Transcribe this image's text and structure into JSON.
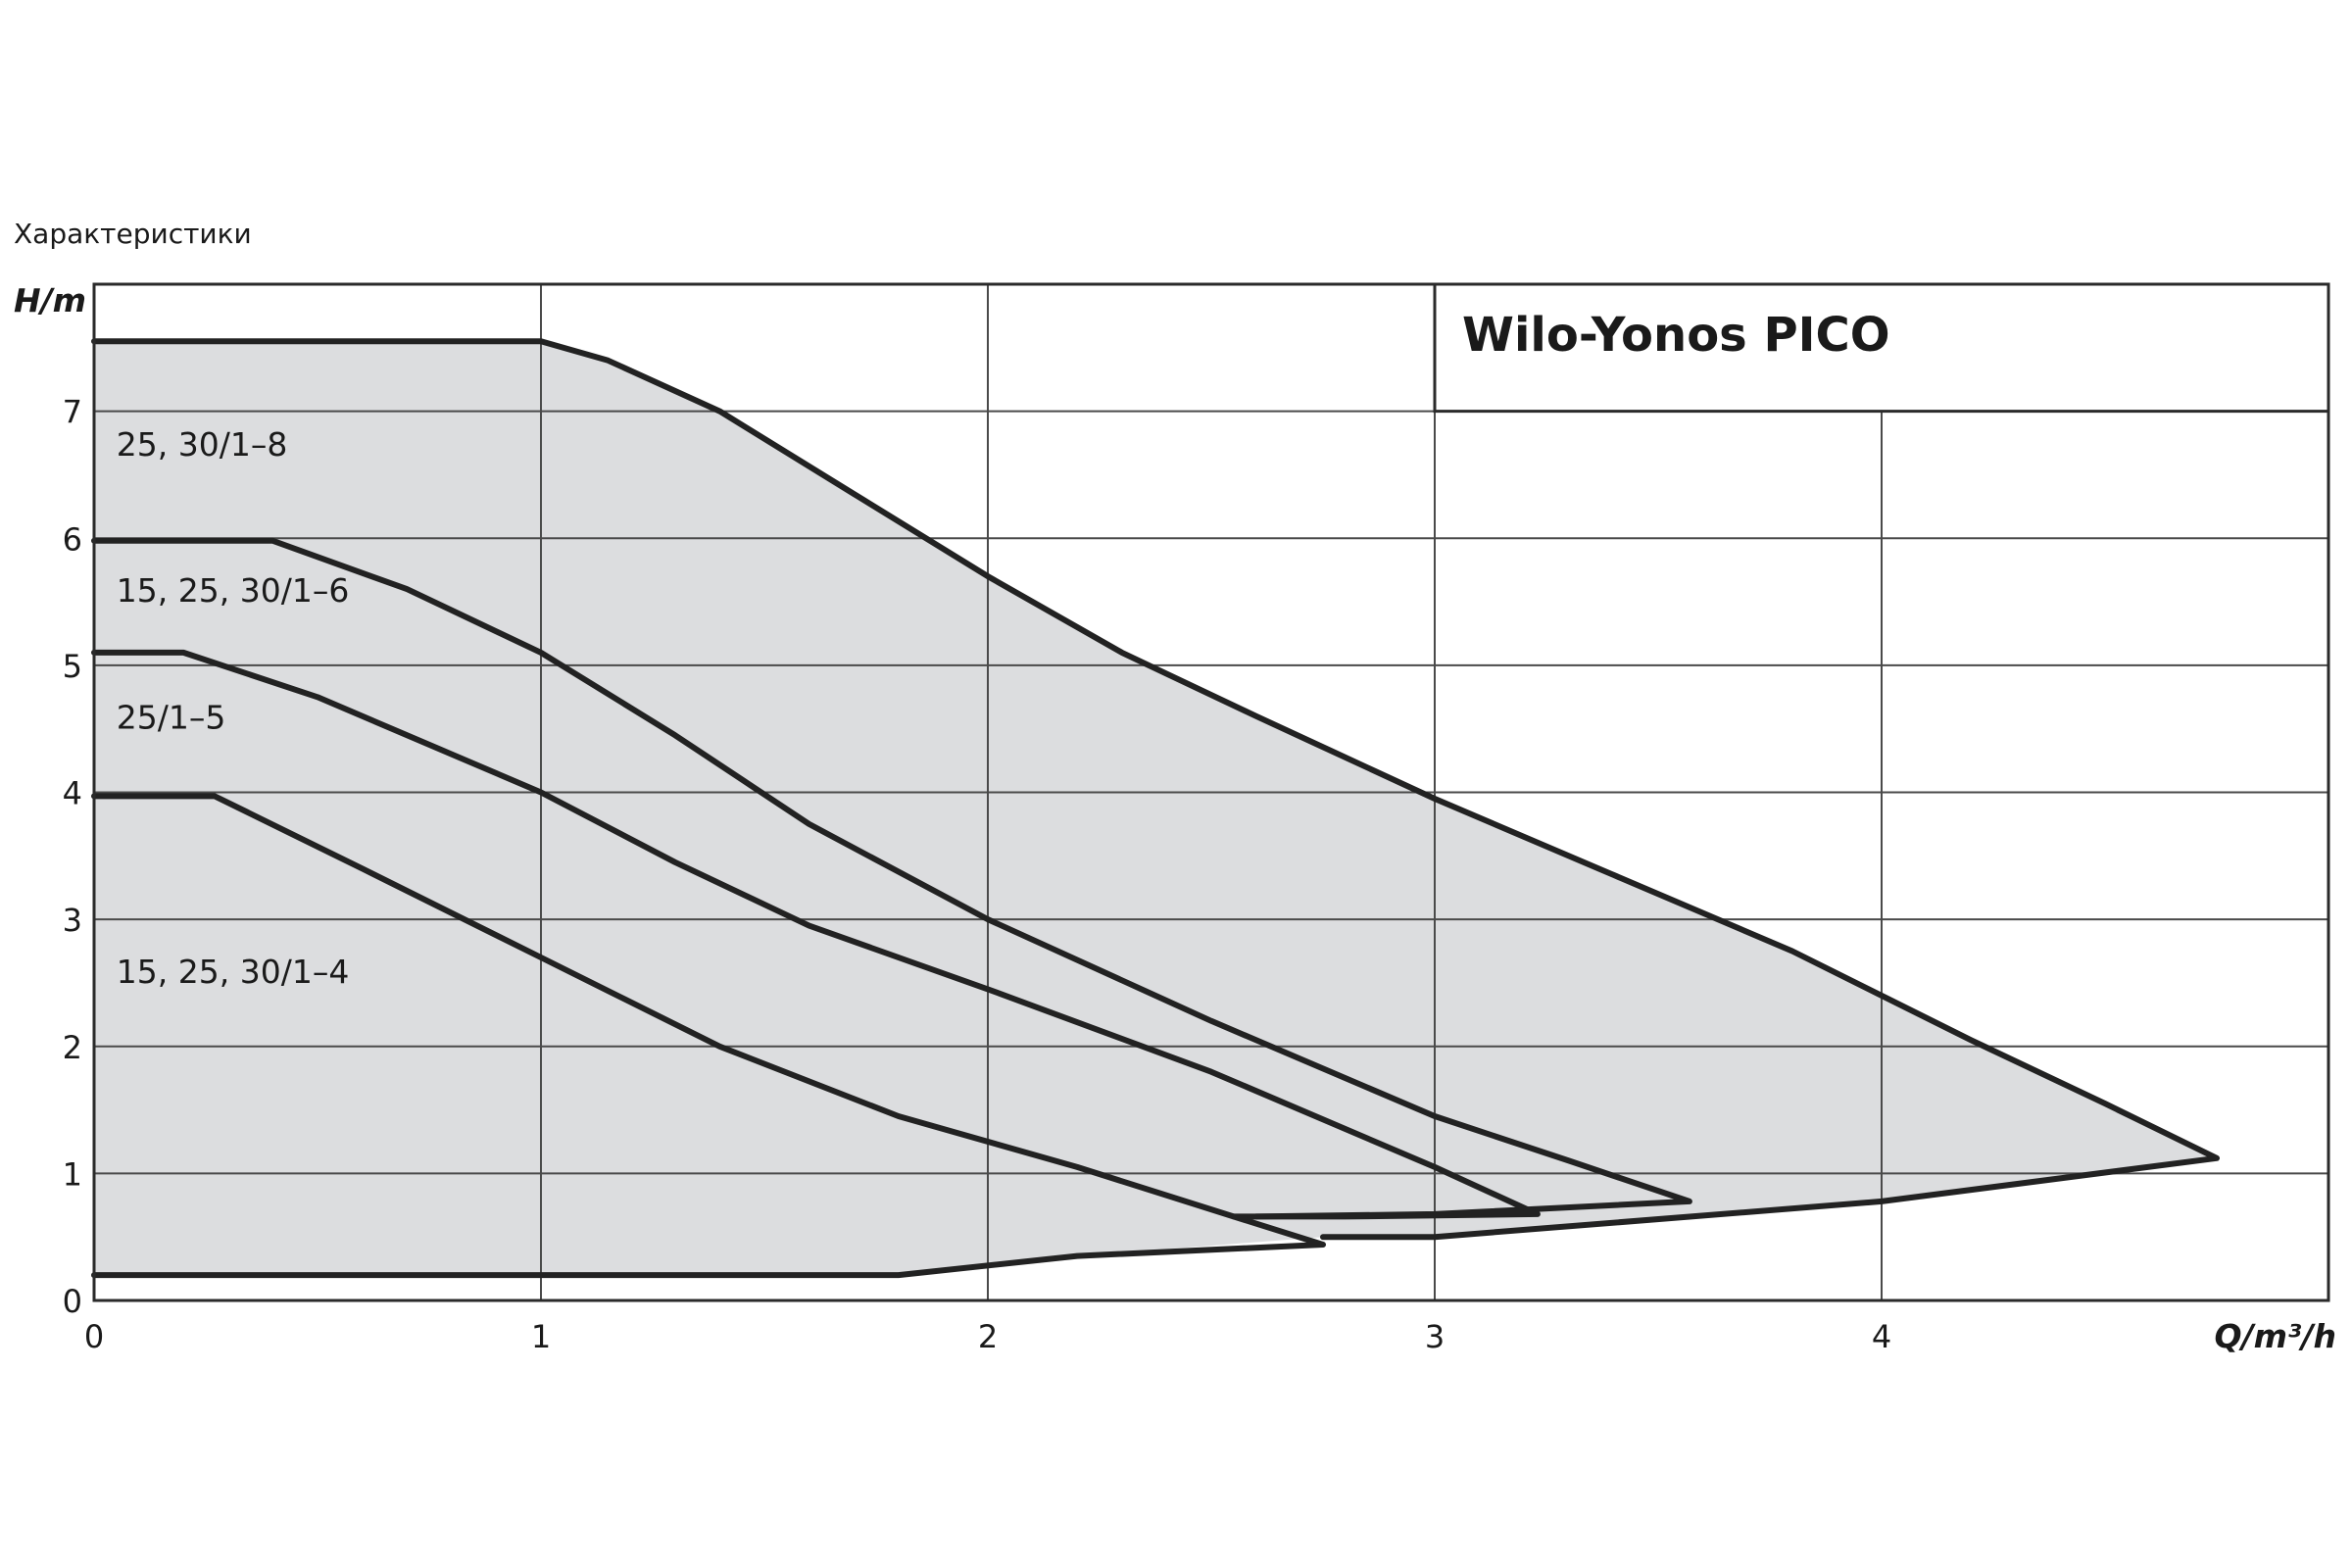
{
  "caption": "Характеристики",
  "chart_data": {
    "type": "area",
    "title": "Wilo-Yonos PICO",
    "xlabel": "Q/m³/h",
    "ylabel": "H/m",
    "xlim": [
      0,
      5
    ],
    "ylim": [
      0,
      8
    ],
    "x_ticks": [
      "0",
      "1",
      "2",
      "3",
      "4"
    ],
    "y_ticks": [
      "0",
      "1",
      "2",
      "3",
      "4",
      "5",
      "6",
      "7"
    ],
    "grid": true,
    "colors": {
      "fill": "#dcdddf",
      "line": "#222222",
      "grid": "#4a4a4a"
    },
    "series": [
      {
        "name": "25, 30/1-8",
        "points": [
          [
            0,
            7.55
          ],
          [
            1.0,
            7.55
          ],
          [
            1.15,
            7.4
          ],
          [
            1.4,
            7.0
          ],
          [
            1.7,
            6.35
          ],
          [
            2.0,
            5.7
          ],
          [
            2.3,
            5.1
          ],
          [
            2.6,
            4.6
          ],
          [
            3.0,
            3.95
          ],
          [
            3.4,
            3.35
          ],
          [
            3.8,
            2.75
          ],
          [
            4.2,
            2.05
          ],
          [
            4.5,
            1.55
          ],
          [
            4.75,
            1.12
          ],
          [
            4.0,
            0.78
          ],
          [
            3.0,
            0.5
          ],
          [
            2.75,
            0.5
          ]
        ]
      },
      {
        "name": "15, 25, 30/1-6",
        "points": [
          [
            0,
            5.98
          ],
          [
            0.4,
            5.98
          ],
          [
            0.7,
            5.6
          ],
          [
            1.0,
            5.1
          ],
          [
            1.3,
            4.45
          ],
          [
            1.6,
            3.75
          ],
          [
            2.0,
            3.0
          ],
          [
            2.5,
            2.2
          ],
          [
            3.0,
            1.45
          ],
          [
            3.3,
            1.1
          ],
          [
            3.57,
            0.78
          ],
          [
            3.0,
            0.68
          ],
          [
            2.6,
            0.66
          ]
        ]
      },
      {
        "name": "25/1-5",
        "points": [
          [
            0,
            5.1
          ],
          [
            0.2,
            5.1
          ],
          [
            0.5,
            4.75
          ],
          [
            0.8,
            4.3
          ],
          [
            1.0,
            4.0
          ],
          [
            1.3,
            3.45
          ],
          [
            1.6,
            2.95
          ],
          [
            2.0,
            2.45
          ],
          [
            2.5,
            1.8
          ],
          [
            3.0,
            1.05
          ],
          [
            3.23,
            0.68
          ],
          [
            2.8,
            0.66
          ],
          [
            2.55,
            0.66
          ]
        ]
      },
      {
        "name": "15, 25, 30/1-4",
        "points": [
          [
            0,
            3.97
          ],
          [
            0.27,
            3.97
          ],
          [
            0.6,
            3.4
          ],
          [
            1.0,
            2.7
          ],
          [
            1.4,
            2.0
          ],
          [
            1.8,
            1.45
          ],
          [
            2.2,
            1.05
          ],
          [
            2.55,
            0.66
          ],
          [
            2.75,
            0.44
          ],
          [
            2.2,
            0.35
          ],
          [
            1.8,
            0.2
          ],
          [
            0,
            0.2
          ]
        ]
      }
    ]
  }
}
